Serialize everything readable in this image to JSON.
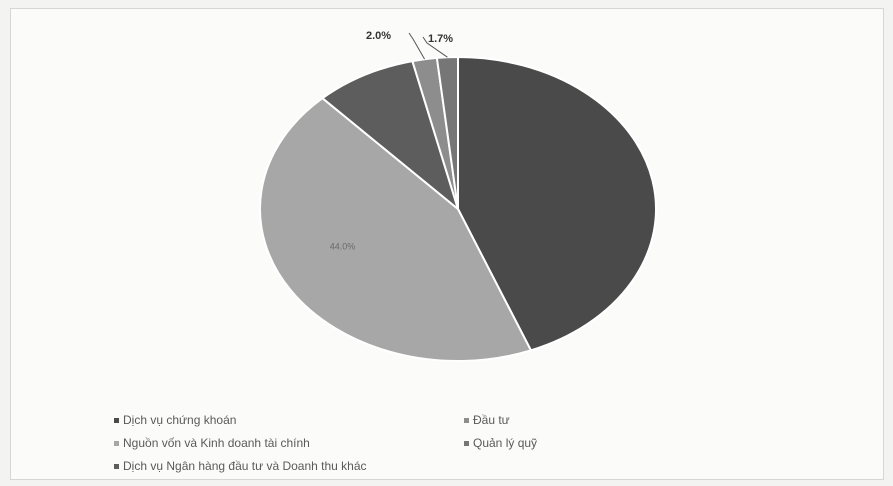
{
  "chart_data": {
    "type": "pie",
    "categories": [
      "Dịch vụ chứng khoán",
      "Nguồn vốn và Kinh doanh tài chính",
      "Dịch vụ Ngân hàng đầu tư và Doanh thu khác",
      "Đầu tư",
      "Quản lý quỹ"
    ],
    "values": [
      44.0,
      44.0,
      8.3,
      2.0,
      1.7
    ],
    "data_labels": [
      "",
      "44.0%",
      "",
      "2.0%",
      "1.7%"
    ],
    "colors": [
      "#4a4a4a",
      "#a7a7a7",
      "#5d5d5d",
      "#8d8d8d",
      "#767676"
    ],
    "legend_position": "bottom"
  }
}
